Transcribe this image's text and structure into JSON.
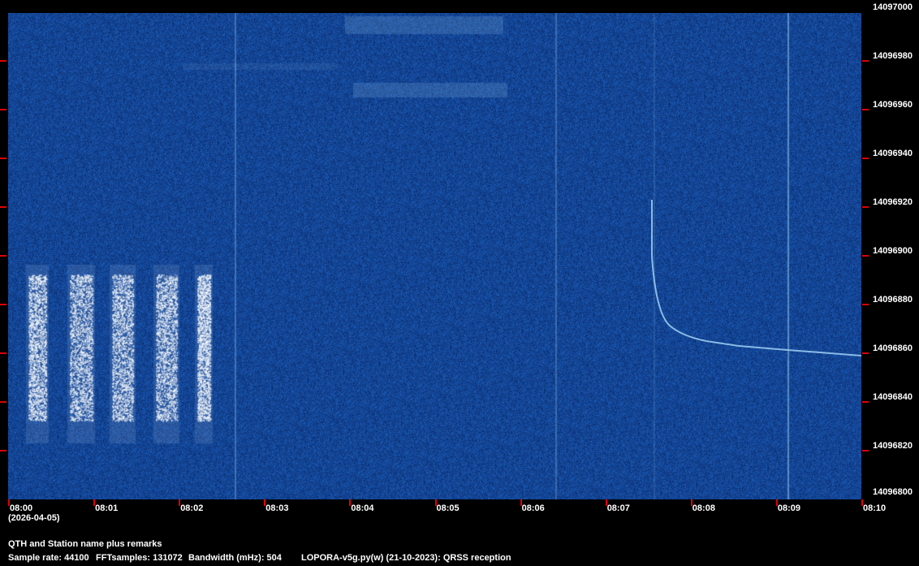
{
  "chart_data": {
    "type": "heatmap",
    "subtype": "spectrogram waterfall",
    "x_ticks": [
      "08:00",
      "08:01",
      "08:02",
      "08:03",
      "08:04",
      "08:05",
      "08:06",
      "08:07",
      "08:08",
      "08:09",
      "08:10"
    ],
    "x_date": "(2026-04-05)",
    "y_ticks": [
      "14097000",
      "14096980",
      "14096960",
      "14096940",
      "14096920",
      "14096900",
      "14096880",
      "14096860",
      "14096840",
      "14096820",
      "14096800"
    ],
    "xlim": [
      "08:00",
      "08:10"
    ],
    "ylim": [
      14096800,
      14097000
    ],
    "colors": {
      "background_noise": "#0f3c82",
      "signal": "#ffffff",
      "tick": "#e00000"
    }
  },
  "footer": {
    "remarks": "QTH and Station name plus remarks",
    "sample_rate": "Sample rate: 44100",
    "fft_samples": "FFTsamples: 131072",
    "bandwidth": "Bandwidth (mHz): 504",
    "program": "LOPORA-v5g.py(w) (21-10-2023): QRSS reception"
  }
}
